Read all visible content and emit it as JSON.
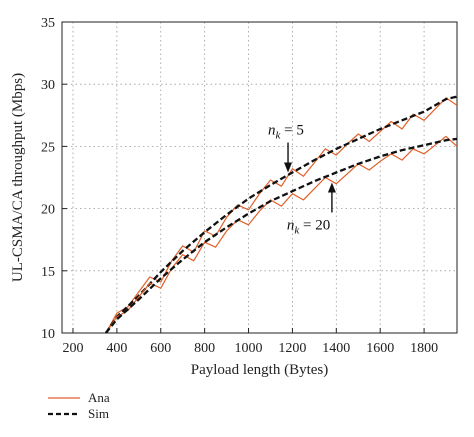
{
  "chart_data": {
    "type": "line",
    "xlabel": "Payload length (Bytes)",
    "ylabel": "UL-CSMA/CA throughput (Mbps)",
    "xlim": [
      150,
      1950
    ],
    "ylim": [
      10,
      35
    ],
    "xticks": [
      200,
      400,
      600,
      800,
      1000,
      1200,
      1400,
      1600,
      1800
    ],
    "yticks": [
      10,
      15,
      20,
      25,
      30,
      35
    ],
    "grid": true,
    "legend_position": "bottom-left, below plot",
    "colors": {
      "ana": "#e0602a",
      "sim": "#111111"
    },
    "series": [
      {
        "name": "Ana",
        "group": "nk=5",
        "style": "solid-orange",
        "x": [
          350,
          400,
          450,
          500,
          550,
          600,
          650,
          700,
          750,
          800,
          850,
          900,
          950,
          1000,
          1050,
          1100,
          1150,
          1200,
          1250,
          1300,
          1350,
          1400,
          1450,
          1500,
          1550,
          1600,
          1650,
          1700,
          1750,
          1800,
          1850,
          1900,
          1950
        ],
        "y": [
          10.0,
          11.6,
          12.1,
          13.3,
          14.5,
          14.1,
          15.8,
          17.0,
          16.5,
          18.2,
          17.8,
          19.3,
          20.3,
          19.9,
          21.2,
          22.3,
          21.8,
          23.2,
          22.6,
          23.7,
          24.8,
          24.3,
          25.2,
          26.0,
          25.4,
          26.2,
          27.0,
          26.4,
          27.6,
          27.1,
          28.0,
          28.9,
          28.3
        ]
      },
      {
        "name": "Sim",
        "group": "nk=5",
        "style": "dashed-black",
        "x": [
          350,
          400,
          500,
          600,
          700,
          800,
          900,
          1000,
          1100,
          1200,
          1300,
          1400,
          1500,
          1600,
          1700,
          1800,
          1900,
          1950
        ],
        "y": [
          10.0,
          11.3,
          13.0,
          14.9,
          16.6,
          18.1,
          19.5,
          20.8,
          21.9,
          22.9,
          23.9,
          24.8,
          25.6,
          26.4,
          27.1,
          27.8,
          28.8,
          29.0
        ]
      },
      {
        "name": "Ana",
        "group": "nk=20",
        "style": "solid-orange",
        "x": [
          350,
          400,
          450,
          500,
          550,
          600,
          650,
          700,
          750,
          800,
          850,
          900,
          950,
          1000,
          1050,
          1100,
          1150,
          1200,
          1250,
          1300,
          1350,
          1400,
          1450,
          1500,
          1550,
          1600,
          1650,
          1700,
          1750,
          1800,
          1850,
          1900,
          1950
        ],
        "y": [
          10.0,
          11.3,
          11.8,
          12.9,
          14.0,
          13.6,
          15.2,
          16.3,
          15.8,
          17.3,
          16.9,
          18.2,
          19.1,
          18.7,
          19.8,
          20.7,
          20.2,
          21.2,
          20.7,
          21.6,
          22.5,
          22.0,
          22.8,
          23.6,
          23.1,
          23.8,
          24.4,
          23.9,
          24.8,
          24.4,
          25.1,
          25.8,
          25.0
        ]
      },
      {
        "name": "Sim",
        "group": "nk=20",
        "style": "dashed-black",
        "x": [
          350,
          400,
          500,
          600,
          700,
          800,
          900,
          1000,
          1100,
          1200,
          1300,
          1400,
          1500,
          1600,
          1700,
          1800,
          1900,
          1950
        ],
        "y": [
          10.0,
          11.1,
          12.7,
          14.4,
          15.9,
          17.3,
          18.5,
          19.6,
          20.6,
          21.4,
          22.2,
          22.9,
          23.6,
          24.2,
          24.7,
          25.1,
          25.5,
          25.6
        ]
      }
    ],
    "legend": [
      {
        "label": "Ana",
        "style": "solid-orange"
      },
      {
        "label": "Sim",
        "style": "dashed-black"
      }
    ],
    "annotations": [
      {
        "text_main": "n",
        "text_sub": "k",
        "text_rest": " = 5",
        "arrow_tip_x": 1180,
        "arrow_tip_y": 22.9
      },
      {
        "text_main": "n",
        "text_sub": "k",
        "text_rest": " = 20",
        "arrow_tip_x": 1380,
        "arrow_tip_y": 22.1
      }
    ]
  }
}
